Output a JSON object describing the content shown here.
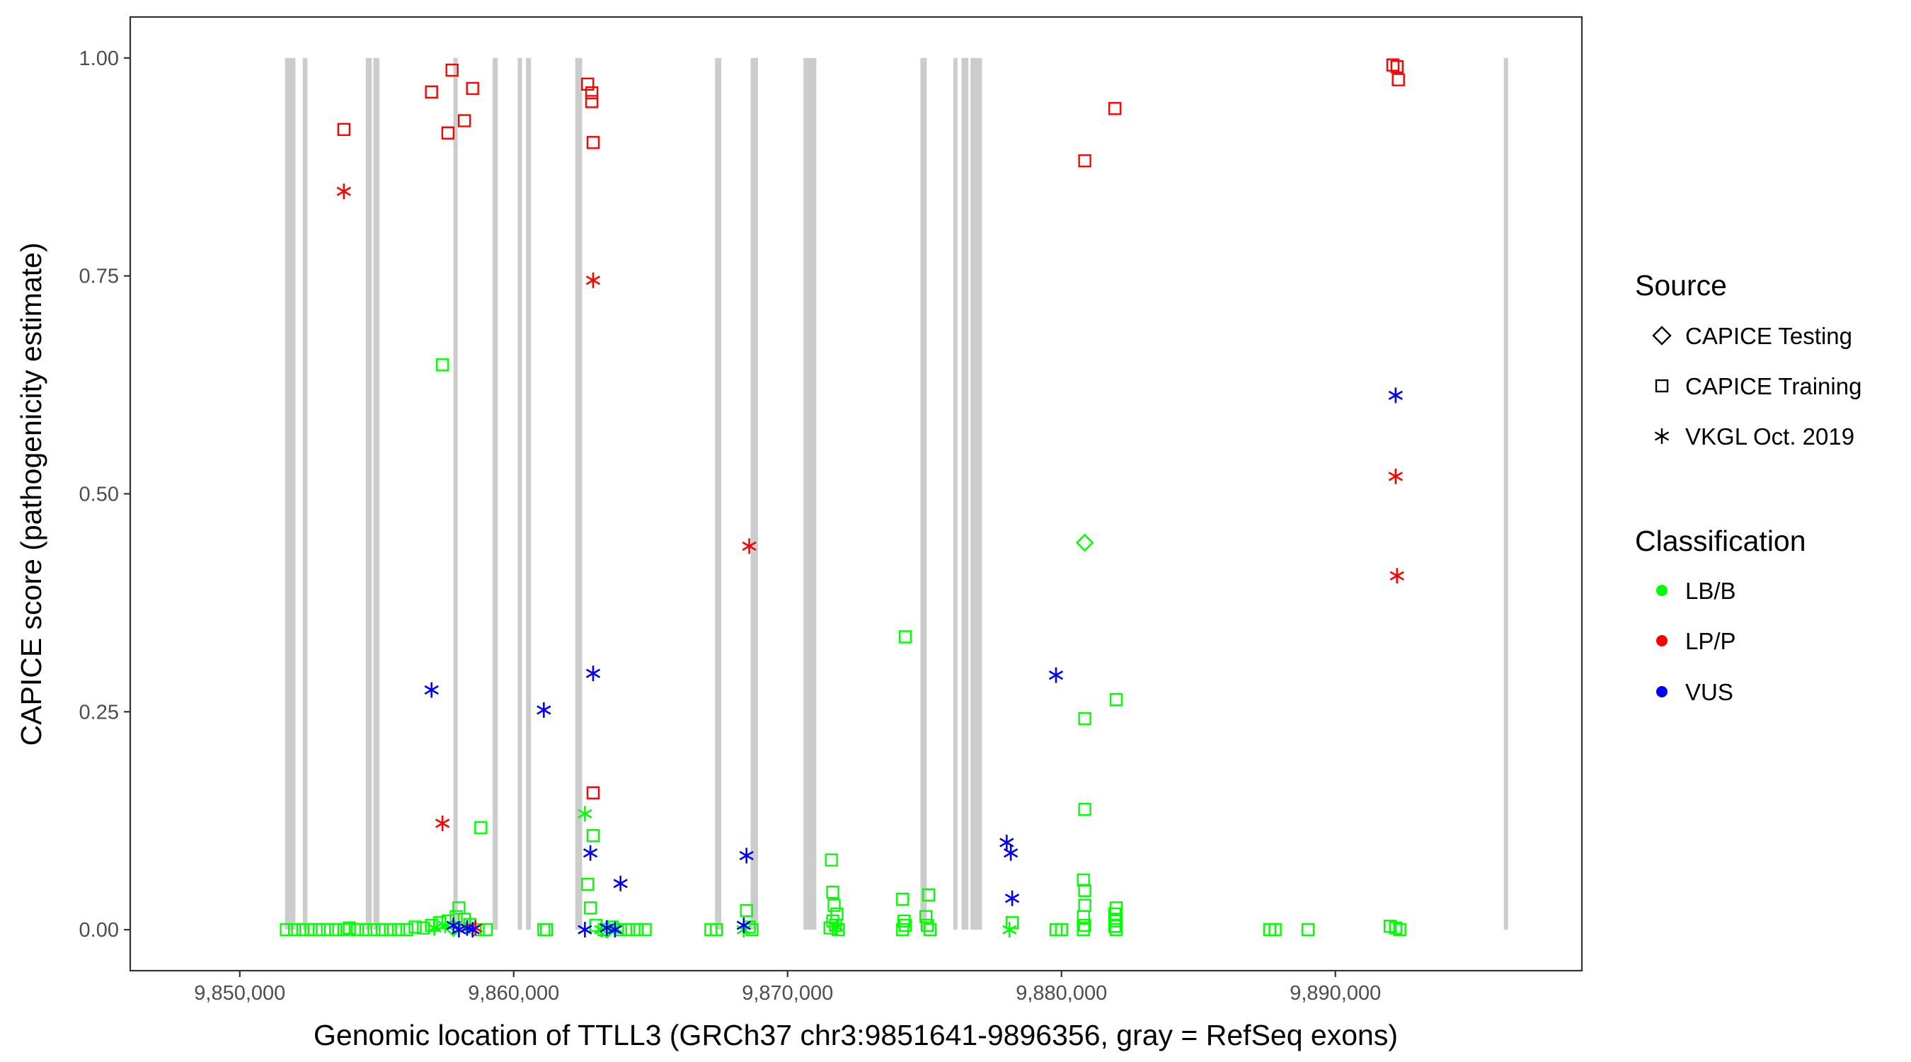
{
  "chart_data": {
    "type": "scatter",
    "xlabel": "Genomic location of TTLL3 (GRCh37 chr3:9851641-9896356, gray = RefSeq exons)",
    "ylabel": "CAPICE score (pathogenicity estimate)",
    "xlim": [
      9846000,
      9899000
    ],
    "ylim": [
      -0.047,
      1.047
    ],
    "x_ticks": [
      9850000,
      9860000,
      9870000,
      9880000,
      9890000
    ],
    "x_tick_labels": [
      "9,850,000",
      "9,860,000",
      "9,870,000",
      "9,880,000",
      "9,890,000"
    ],
    "y_ticks": [
      0,
      0.25,
      0.5,
      0.75,
      1.0
    ],
    "y_tick_labels": [
      "0.00",
      "0.25",
      "0.50",
      "0.75",
      "1.00"
    ],
    "grid": false,
    "exons": [
      [
        9851650,
        9852030
      ],
      [
        9852300,
        9852470
      ],
      [
        9854600,
        9854820
      ],
      [
        9854880,
        9855100
      ],
      [
        9857800,
        9857950
      ],
      [
        9859230,
        9859420
      ],
      [
        9860150,
        9860300
      ],
      [
        9860450,
        9860630
      ],
      [
        9862250,
        9862500
      ],
      [
        9867350,
        9867580
      ],
      [
        9868650,
        9868920
      ],
      [
        9870580,
        9871050
      ],
      [
        9874850,
        9875080
      ],
      [
        9876050,
        9876200
      ],
      [
        9876350,
        9876600
      ],
      [
        9876680,
        9877100
      ],
      [
        9896150,
        9896300
      ]
    ],
    "exon_color": "#cccccc",
    "legend": {
      "position": "right",
      "source_title": "Source",
      "source_entries": [
        {
          "label": "CAPICE Testing",
          "shape": "diamond"
        },
        {
          "label": "CAPICE Training",
          "shape": "square"
        },
        {
          "label": "VKGL Oct. 2019",
          "shape": "asterisk"
        }
      ],
      "class_title": "Classification",
      "class_entries": [
        {
          "label": "LB/B",
          "color": "#00ff00"
        },
        {
          "label": "LP/P",
          "color": "#ff0000"
        },
        {
          "label": "VUS",
          "color": "#0000ff"
        }
      ]
    },
    "series": [
      {
        "source": "CAPICE Training",
        "classification": "LP/P",
        "points": [
          [
            9853800,
            0.918
          ],
          [
            9857000,
            0.961
          ],
          [
            9857600,
            0.914
          ],
          [
            9857750,
            0.986
          ],
          [
            9858200,
            0.928
          ],
          [
            9858500,
            0.965
          ],
          [
            9862700,
            0.97
          ],
          [
            9862850,
            0.96
          ],
          [
            9862850,
            0.95
          ],
          [
            9862900,
            0.903
          ],
          [
            9862900,
            0.157
          ],
          [
            9880850,
            0.882
          ],
          [
            9881950,
            0.942
          ],
          [
            9892100,
            0.992
          ],
          [
            9892250,
            0.99
          ],
          [
            9892300,
            0.975
          ]
        ]
      },
      {
        "source": "VKGL Oct. 2019",
        "classification": "LP/P",
        "points": [
          [
            9853800,
            0.847
          ],
          [
            9857400,
            0.122
          ],
          [
            9858600,
            0.002
          ],
          [
            9862900,
            0.745
          ],
          [
            9868600,
            0.44
          ],
          [
            9892200,
            0.52
          ],
          [
            9892250,
            0.406
          ]
        ]
      },
      {
        "source": "CAPICE Training",
        "classification": "LB/B",
        "points": [
          [
            9851700,
            0.0
          ],
          [
            9852000,
            0.0
          ],
          [
            9852300,
            0.0
          ],
          [
            9852600,
            0.0
          ],
          [
            9852900,
            0.0
          ],
          [
            9853200,
            0.0
          ],
          [
            9853500,
            0.0
          ],
          [
            9853800,
            0.0
          ],
          [
            9854000,
            0.002
          ],
          [
            9854300,
            0.0
          ],
          [
            9854600,
            0.0
          ],
          [
            9854900,
            0.0
          ],
          [
            9855200,
            0.0
          ],
          [
            9855500,
            0.0
          ],
          [
            9855800,
            0.0
          ],
          [
            9856100,
            0.0
          ],
          [
            9856400,
            0.003
          ],
          [
            9856700,
            0.002
          ],
          [
            9857000,
            0.005
          ],
          [
            9857300,
            0.008
          ],
          [
            9857600,
            0.01
          ],
          [
            9857900,
            0.015
          ],
          [
            9858000,
            0.025
          ],
          [
            9858200,
            0.012
          ],
          [
            9858400,
            0.006
          ],
          [
            9858700,
            0.0
          ],
          [
            9859000,
            0.0
          ],
          [
            9857400,
            0.648
          ],
          [
            9858800,
            0.117
          ],
          [
            9861100,
            0.0
          ],
          [
            9861200,
            0.0
          ],
          [
            9862700,
            0.052
          ],
          [
            9862800,
            0.025
          ],
          [
            9862900,
            0.108
          ],
          [
            9863000,
            0.005
          ],
          [
            9863300,
            0.0
          ],
          [
            9863600,
            0.003
          ],
          [
            9863900,
            0.0
          ],
          [
            9864200,
            0.0
          ],
          [
            9864500,
            0.0
          ],
          [
            9864800,
            0.0
          ],
          [
            9867200,
            0.0
          ],
          [
            9867400,
            0.0
          ],
          [
            9868500,
            0.022
          ],
          [
            9868600,
            0.003
          ],
          [
            9868700,
            0.0
          ],
          [
            9871600,
            0.08
          ],
          [
            9871650,
            0.043
          ],
          [
            9871700,
            0.028
          ],
          [
            9871800,
            0.018
          ],
          [
            9871650,
            0.01
          ],
          [
            9871750,
            0.005
          ],
          [
            9871550,
            0.002
          ],
          [
            9871850,
            0.0
          ],
          [
            9874300,
            0.336
          ],
          [
            9874200,
            0.035
          ],
          [
            9874250,
            0.01
          ],
          [
            9874300,
            0.005
          ],
          [
            9874200,
            0.0
          ],
          [
            9875150,
            0.04
          ],
          [
            9875050,
            0.015
          ],
          [
            9875100,
            0.005
          ],
          [
            9875200,
            0.0
          ],
          [
            9878200,
            0.008
          ],
          [
            9879800,
            0.0
          ],
          [
            9880000,
            0.0
          ],
          [
            9880850,
            0.242
          ],
          [
            9880850,
            0.138
          ],
          [
            9880800,
            0.057
          ],
          [
            9880850,
            0.045
          ],
          [
            9880850,
            0.028
          ],
          [
            9880800,
            0.015
          ],
          [
            9880850,
            0.005
          ],
          [
            9880800,
            0.0
          ],
          [
            9882000,
            0.264
          ],
          [
            9882000,
            0.025
          ],
          [
            9881950,
            0.018
          ],
          [
            9882000,
            0.01
          ],
          [
            9881950,
            0.004
          ],
          [
            9882000,
            0.0
          ],
          [
            9887600,
            0.0
          ],
          [
            9887800,
            0.0
          ],
          [
            9889000,
            0.0
          ],
          [
            9892000,
            0.004
          ],
          [
            9892200,
            0.002
          ],
          [
            9892350,
            0.0
          ]
        ]
      },
      {
        "source": "VKGL Oct. 2019",
        "classification": "LB/B",
        "points": [
          [
            9857100,
            0.002
          ],
          [
            9857500,
            0.005
          ],
          [
            9858400,
            0.004
          ],
          [
            9862600,
            0.133
          ],
          [
            9863200,
            0.0
          ],
          [
            9863700,
            0.002
          ],
          [
            9868400,
            0.0
          ],
          [
            9871800,
            0.003
          ],
          [
            9878100,
            0.0
          ]
        ]
      },
      {
        "source": "CAPICE Testing",
        "classification": "LB/B",
        "points": [
          [
            9880850,
            0.444
          ],
          [
            9857800,
            0.002
          ],
          [
            9863400,
            0.0
          ]
        ]
      },
      {
        "source": "VKGL Oct. 2019",
        "classification": "VUS",
        "points": [
          [
            9857000,
            0.275
          ],
          [
            9857800,
            0.005
          ],
          [
            9858000,
            0.0
          ],
          [
            9858300,
            0.002
          ],
          [
            9858500,
            0.0
          ],
          [
            9861100,
            0.252
          ],
          [
            9862600,
            0.0
          ],
          [
            9862800,
            0.088
          ],
          [
            9862900,
            0.294
          ],
          [
            9863400,
            0.002
          ],
          [
            9863900,
            0.053
          ],
          [
            9863700,
            0.0
          ],
          [
            9868500,
            0.085
          ],
          [
            9868400,
            0.005
          ],
          [
            9878000,
            0.1
          ],
          [
            9878150,
            0.088
          ],
          [
            9878200,
            0.036
          ],
          [
            9879800,
            0.292
          ],
          [
            9892200,
            0.613
          ]
        ]
      }
    ]
  }
}
